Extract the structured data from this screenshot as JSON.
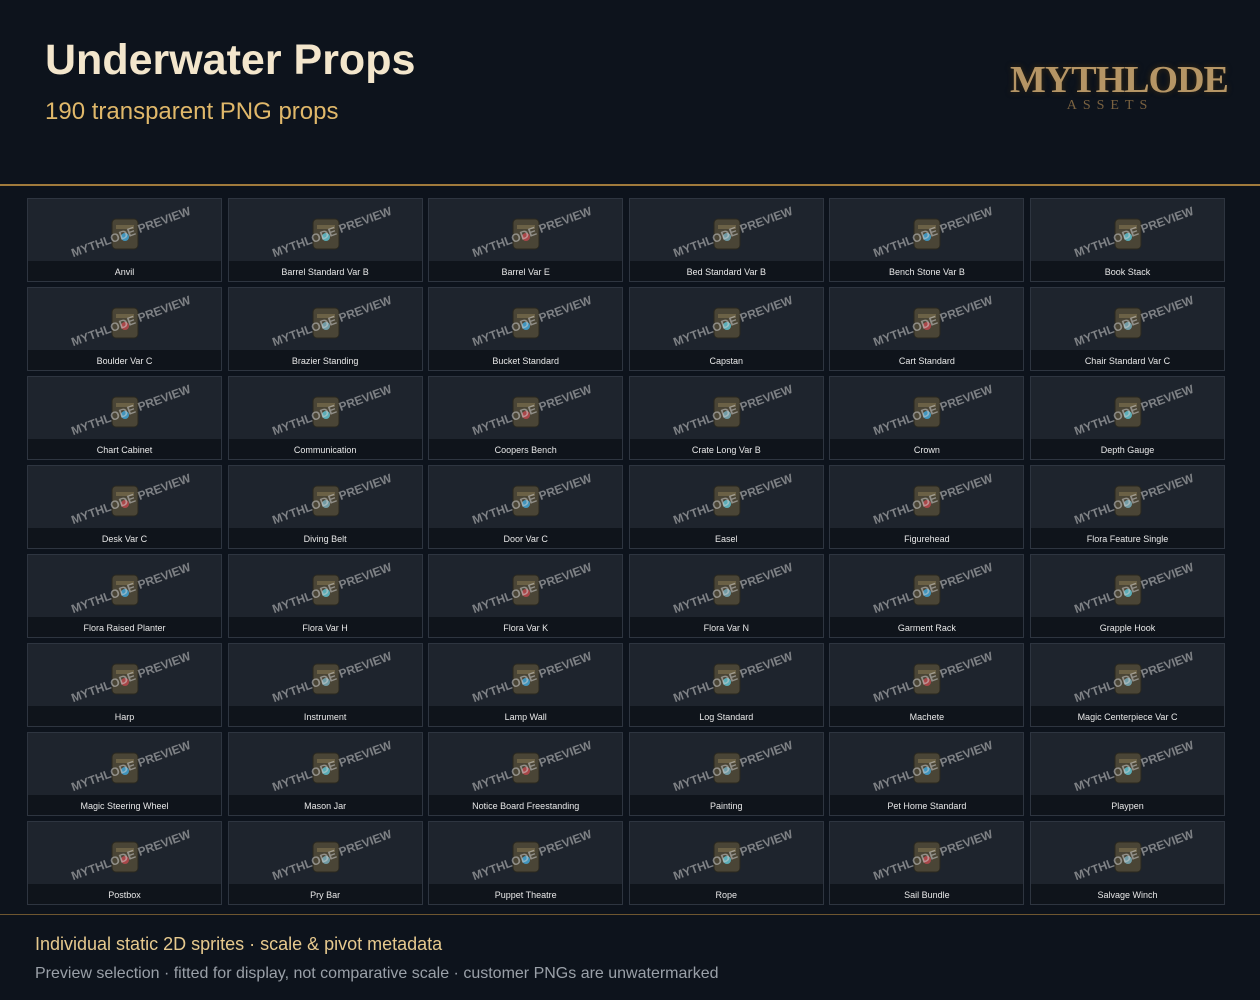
{
  "header": {
    "title": "Underwater Props",
    "subtitle": "190 transparent PNG props"
  },
  "logo": {
    "name": "MYTHLODE",
    "tagline": "ASSETS"
  },
  "watermark": "MYTHLODE PREVIEW",
  "props": [
    "Anvil",
    "Barrel Standard Var B",
    "Barrel Var E",
    "Bed Standard Var B",
    "Bench Stone Var B",
    "Book Stack",
    "Boulder Var C",
    "Brazier Standing",
    "Bucket Standard",
    "Capstan",
    "Cart Standard",
    "Chair Standard Var C",
    "Chart Cabinet",
    "Communication",
    "Coopers Bench",
    "Crate Long Var B",
    "Crown",
    "Depth Gauge",
    "Desk Var C",
    "Diving Belt",
    "Door Var C",
    "Easel",
    "Figurehead",
    "Flora Feature Single",
    "Flora Raised Planter",
    "Flora Var H",
    "Flora Var K",
    "Flora Var N",
    "Garment Rack",
    "Grapple Hook",
    "Harp",
    "Instrument",
    "Lamp Wall",
    "Log Standard",
    "Machete",
    "Magic Centerpiece Var C",
    "Magic Steering Wheel",
    "Mason Jar",
    "Notice Board Freestanding",
    "Painting",
    "Pet Home Standard",
    "Playpen",
    "Postbox",
    "Pry Bar",
    "Puppet Theatre",
    "Rope",
    "Sail Bundle",
    "Salvage Winch"
  ],
  "footer": {
    "line1": "Individual static 2D sprites · scale & pivot metadata",
    "line2": "Preview selection · fitted for display, not comparative scale · customer PNGs are unwatermarked"
  }
}
